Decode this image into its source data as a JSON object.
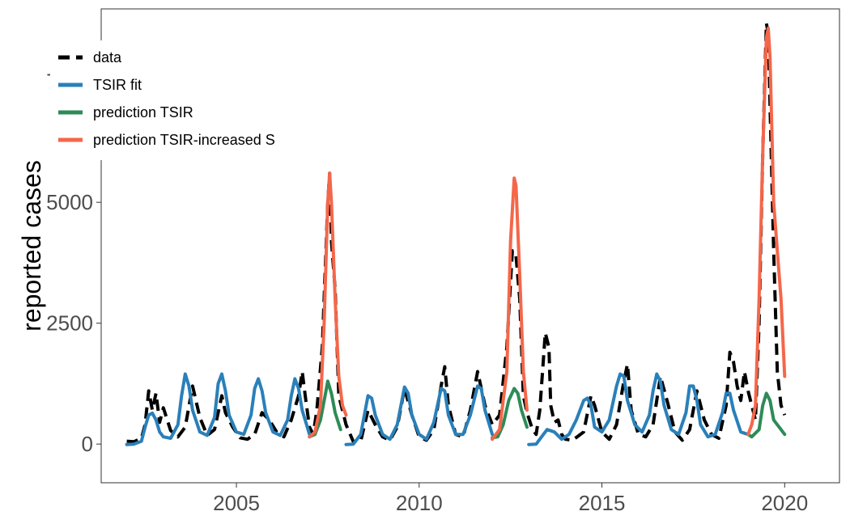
{
  "chart_data": {
    "type": "line",
    "title": "",
    "xlabel": "",
    "ylabel": "reported cases",
    "xlim": [
      2001.3,
      2021.5
    ],
    "ylim": [
      -800,
      9000
    ],
    "x_ticks": [
      2005,
      2010,
      2015,
      2020
    ],
    "y_ticks": [
      0,
      2500,
      5000,
      7500
    ],
    "grid": false,
    "legend_position": "top-left",
    "series": [
      {
        "name": "data",
        "color": "#000000",
        "dash": true,
        "points": [
          [
            2002.0,
            60
          ],
          [
            2002.2,
            50
          ],
          [
            2002.4,
            120
          ],
          [
            2002.5,
            400
          ],
          [
            2002.6,
            1100
          ],
          [
            2002.7,
            700
          ],
          [
            2002.8,
            1050
          ],
          [
            2002.9,
            450
          ],
          [
            2003.0,
            750
          ],
          [
            2003.2,
            280
          ],
          [
            2003.4,
            150
          ],
          [
            2003.6,
            350
          ],
          [
            2003.8,
            1200
          ],
          [
            2004.0,
            550
          ],
          [
            2004.2,
            180
          ],
          [
            2004.4,
            300
          ],
          [
            2004.6,
            1000
          ],
          [
            2004.7,
            650
          ],
          [
            2004.9,
            350
          ],
          [
            2005.1,
            130
          ],
          [
            2005.3,
            100
          ],
          [
            2005.5,
            200
          ],
          [
            2005.7,
            650
          ],
          [
            2005.9,
            500
          ],
          [
            2006.1,
            250
          ],
          [
            2006.3,
            150
          ],
          [
            2006.5,
            500
          ],
          [
            2006.7,
            1000
          ],
          [
            2006.8,
            1500
          ],
          [
            2006.9,
            900
          ],
          [
            2007.0,
            350
          ],
          [
            2007.1,
            200
          ],
          [
            2007.2,
            700
          ],
          [
            2007.35,
            2000
          ],
          [
            2007.5,
            5000
          ],
          [
            2007.55,
            5600
          ],
          [
            2007.6,
            4200
          ],
          [
            2007.7,
            3200
          ],
          [
            2007.8,
            1000
          ],
          [
            2007.9,
            700
          ],
          [
            2008.0,
            400
          ],
          [
            2008.2,
            50
          ],
          [
            2008.4,
            60
          ],
          [
            2008.6,
            700
          ],
          [
            2008.8,
            400
          ],
          [
            2009.0,
            150
          ],
          [
            2009.2,
            80
          ],
          [
            2009.4,
            350
          ],
          [
            2009.6,
            1150
          ],
          [
            2009.8,
            600
          ],
          [
            2010.0,
            150
          ],
          [
            2010.2,
            80
          ],
          [
            2010.4,
            300
          ],
          [
            2010.6,
            1200
          ],
          [
            2010.7,
            1600
          ],
          [
            2010.8,
            800
          ],
          [
            2011.0,
            200
          ],
          [
            2011.2,
            150
          ],
          [
            2011.4,
            700
          ],
          [
            2011.6,
            1500
          ],
          [
            2011.8,
            800
          ],
          [
            2012.0,
            400
          ],
          [
            2012.2,
            600
          ],
          [
            2012.4,
            2000
          ],
          [
            2012.55,
            4000
          ],
          [
            2012.65,
            3900
          ],
          [
            2012.75,
            3000
          ],
          [
            2012.85,
            1000
          ],
          [
            2012.95,
            650
          ],
          [
            2013.1,
            300
          ],
          [
            2013.2,
            200
          ],
          [
            2013.3,
            700
          ],
          [
            2013.45,
            2300
          ],
          [
            2013.55,
            2000
          ],
          [
            2013.6,
            800
          ],
          [
            2013.7,
            450
          ],
          [
            2013.8,
            500
          ],
          [
            2013.9,
            200
          ],
          [
            2014.0,
            100
          ],
          [
            2014.2,
            80
          ],
          [
            2014.5,
            250
          ],
          [
            2014.7,
            1000
          ],
          [
            2014.8,
            800
          ],
          [
            2015.0,
            250
          ],
          [
            2015.2,
            100
          ],
          [
            2015.4,
            400
          ],
          [
            2015.6,
            1300
          ],
          [
            2015.7,
            1650
          ],
          [
            2015.8,
            700
          ],
          [
            2016.0,
            200
          ],
          [
            2016.2,
            150
          ],
          [
            2016.4,
            400
          ],
          [
            2016.6,
            1400
          ],
          [
            2016.8,
            850
          ],
          [
            2017.0,
            250
          ],
          [
            2017.2,
            80
          ],
          [
            2017.4,
            300
          ],
          [
            2017.6,
            1100
          ],
          [
            2017.8,
            500
          ],
          [
            2018.0,
            200
          ],
          [
            2018.2,
            120
          ],
          [
            2018.4,
            800
          ],
          [
            2018.5,
            1900
          ],
          [
            2018.6,
            1700
          ],
          [
            2018.7,
            1200
          ],
          [
            2018.8,
            900
          ],
          [
            2018.9,
            1500
          ],
          [
            2019.0,
            1100
          ],
          [
            2019.1,
            800
          ],
          [
            2019.2,
            500
          ],
          [
            2019.3,
            2500
          ],
          [
            2019.4,
            6000
          ],
          [
            2019.5,
            8700
          ],
          [
            2019.55,
            8500
          ],
          [
            2019.6,
            7000
          ],
          [
            2019.7,
            4000
          ],
          [
            2019.8,
            1500
          ],
          [
            2019.9,
            800
          ],
          [
            2020.0,
            600
          ]
        ]
      },
      {
        "name": "TSIR fit",
        "color": "#2a80b9",
        "dash": false,
        "points": [
          [
            2002.0,
            -10
          ],
          [
            2002.2,
            0
          ],
          [
            2002.4,
            60
          ],
          [
            2002.5,
            350
          ],
          [
            2002.6,
            600
          ],
          [
            2002.7,
            640
          ],
          [
            2002.8,
            500
          ],
          [
            2002.9,
            250
          ],
          [
            2003.0,
            150
          ],
          [
            2003.2,
            120
          ],
          [
            2003.4,
            400
          ],
          [
            2003.5,
            1000
          ],
          [
            2003.6,
            1450
          ],
          [
            2003.7,
            1200
          ],
          [
            2003.8,
            700
          ],
          [
            2004.0,
            250
          ],
          [
            2004.2,
            180
          ],
          [
            2004.4,
            550
          ],
          [
            2004.5,
            1250
          ],
          [
            2004.6,
            1450
          ],
          [
            2004.7,
            1100
          ],
          [
            2004.8,
            600
          ],
          [
            2005.0,
            250
          ],
          [
            2005.2,
            200
          ],
          [
            2005.4,
            600
          ],
          [
            2005.5,
            1150
          ],
          [
            2005.6,
            1350
          ],
          [
            2005.7,
            1100
          ],
          [
            2005.8,
            650
          ],
          [
            2006.0,
            250
          ],
          [
            2006.2,
            180
          ],
          [
            2006.4,
            500
          ],
          [
            2006.5,
            1000
          ],
          [
            2006.6,
            1350
          ],
          [
            2006.7,
            1150
          ],
          [
            2006.8,
            700
          ],
          [
            2007.0,
            200
          ]
        ]
      },
      {
        "name": "TSIR fit",
        "color": "#2a80b9",
        "dash": false,
        "points": [
          [
            2008.0,
            -10
          ],
          [
            2008.2,
            0
          ],
          [
            2008.4,
            200
          ],
          [
            2008.6,
            1000
          ],
          [
            2008.7,
            950
          ],
          [
            2008.8,
            600
          ],
          [
            2009.0,
            200
          ],
          [
            2009.2,
            100
          ],
          [
            2009.4,
            400
          ],
          [
            2009.6,
            1180
          ],
          [
            2009.7,
            1050
          ],
          [
            2009.8,
            600
          ],
          [
            2010.0,
            200
          ],
          [
            2010.2,
            100
          ],
          [
            2010.4,
            450
          ],
          [
            2010.6,
            1150
          ],
          [
            2010.7,
            1100
          ],
          [
            2010.8,
            600
          ],
          [
            2011.0,
            200
          ],
          [
            2011.2,
            200
          ],
          [
            2011.4,
            600
          ],
          [
            2011.6,
            1200
          ],
          [
            2011.7,
            1150
          ],
          [
            2011.8,
            700
          ],
          [
            2012.0,
            200
          ]
        ]
      },
      {
        "name": "TSIR fit",
        "color": "#2a80b9",
        "dash": false,
        "points": [
          [
            2013.0,
            -10
          ],
          [
            2013.2,
            0
          ],
          [
            2013.3,
            100
          ],
          [
            2013.5,
            300
          ],
          [
            2013.7,
            250
          ],
          [
            2013.9,
            100
          ],
          [
            2014.1,
            200
          ],
          [
            2014.3,
            500
          ],
          [
            2014.5,
            900
          ],
          [
            2014.6,
            950
          ],
          [
            2014.7,
            800
          ],
          [
            2014.8,
            350
          ],
          [
            2015.0,
            250
          ],
          [
            2015.2,
            500
          ],
          [
            2015.4,
            1200
          ],
          [
            2015.5,
            1450
          ],
          [
            2015.6,
            1400
          ],
          [
            2015.7,
            900
          ],
          [
            2015.9,
            400
          ],
          [
            2016.1,
            250
          ],
          [
            2016.3,
            600
          ],
          [
            2016.4,
            1100
          ],
          [
            2016.5,
            1450
          ],
          [
            2016.6,
            1300
          ],
          [
            2016.7,
            800
          ],
          [
            2016.9,
            300
          ],
          [
            2017.1,
            200
          ],
          [
            2017.3,
            650
          ],
          [
            2017.4,
            1200
          ],
          [
            2017.5,
            1200
          ],
          [
            2017.6,
            900
          ],
          [
            2017.7,
            400
          ],
          [
            2017.9,
            150
          ],
          [
            2018.1,
            200
          ],
          [
            2018.3,
            650
          ],
          [
            2018.4,
            1050
          ],
          [
            2018.5,
            1050
          ],
          [
            2018.6,
            700
          ],
          [
            2018.8,
            250
          ],
          [
            2019.0,
            200
          ]
        ]
      },
      {
        "name": "prediction TSIR",
        "color": "#2e8b57",
        "dash": false,
        "points": [
          [
            2007.0,
            150
          ],
          [
            2007.15,
            200
          ],
          [
            2007.3,
            500
          ],
          [
            2007.45,
            1100
          ],
          [
            2007.5,
            1300
          ],
          [
            2007.6,
            1050
          ],
          [
            2007.7,
            650
          ],
          [
            2007.85,
            300
          ]
        ]
      },
      {
        "name": "prediction TSIR",
        "color": "#2e8b57",
        "dash": false,
        "points": [
          [
            2012.0,
            130
          ],
          [
            2012.15,
            150
          ],
          [
            2012.3,
            400
          ],
          [
            2012.45,
            900
          ],
          [
            2012.6,
            1150
          ],
          [
            2012.7,
            1050
          ],
          [
            2012.8,
            700
          ],
          [
            2012.95,
            350
          ]
        ]
      },
      {
        "name": "prediction TSIR",
        "color": "#2e8b57",
        "dash": false,
        "points": [
          [
            2019.0,
            200
          ],
          [
            2019.1,
            150
          ],
          [
            2019.3,
            300
          ],
          [
            2019.4,
            800
          ],
          [
            2019.5,
            1050
          ],
          [
            2019.6,
            900
          ],
          [
            2019.7,
            500
          ],
          [
            2019.85,
            350
          ],
          [
            2020.0,
            200
          ]
        ]
      },
      {
        "name": "prediction TSIR-increased S",
        "color": "#f4674a",
        "dash": false,
        "points": [
          [
            2007.0,
            150
          ],
          [
            2007.15,
            250
          ],
          [
            2007.3,
            800
          ],
          [
            2007.4,
            2500
          ],
          [
            2007.5,
            5000
          ],
          [
            2007.55,
            5600
          ],
          [
            2007.6,
            5000
          ],
          [
            2007.7,
            3000
          ],
          [
            2007.8,
            1400
          ],
          [
            2007.9,
            800
          ],
          [
            2008.0,
            600
          ]
        ]
      },
      {
        "name": "prediction TSIR-increased S",
        "color": "#f4674a",
        "dash": false,
        "points": [
          [
            2012.0,
            100
          ],
          [
            2012.2,
            300
          ],
          [
            2012.4,
            1500
          ],
          [
            2012.5,
            4200
          ],
          [
            2012.6,
            5500
          ],
          [
            2012.65,
            5350
          ],
          [
            2012.75,
            3500
          ],
          [
            2012.85,
            1500
          ],
          [
            2012.95,
            700
          ]
        ]
      },
      {
        "name": "prediction TSIR-increased S",
        "color": "#f4674a",
        "dash": false,
        "points": [
          [
            2019.0,
            200
          ],
          [
            2019.1,
            400
          ],
          [
            2019.2,
            800
          ],
          [
            2019.3,
            3000
          ],
          [
            2019.4,
            6000
          ],
          [
            2019.5,
            8400
          ],
          [
            2019.55,
            8600
          ],
          [
            2019.6,
            8000
          ],
          [
            2019.7,
            5000
          ],
          [
            2019.8,
            4000
          ],
          [
            2019.9,
            3000
          ],
          [
            2020.0,
            1400
          ]
        ]
      }
    ]
  }
}
